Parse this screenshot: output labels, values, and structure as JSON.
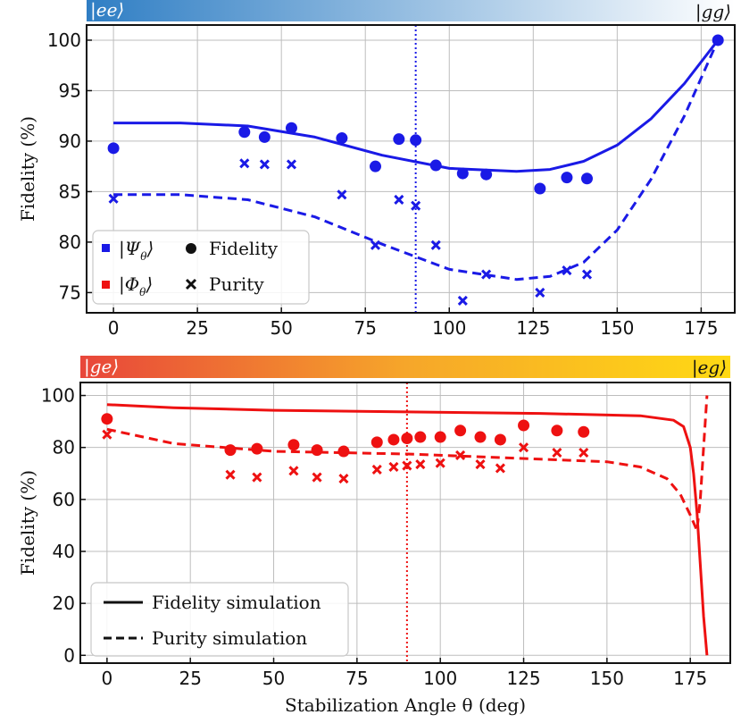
{
  "chart_data": [
    {
      "type": "scatter",
      "title": "",
      "xlabel": "",
      "ylabel": "Fidelity (%)",
      "xlim": [
        -8,
        185
      ],
      "ylim": [
        73,
        101.5
      ],
      "xticks": [
        "0",
        "25",
        "50",
        "75",
        "100",
        "125",
        "150",
        "175"
      ],
      "yticks": [
        "75",
        "80",
        "85",
        "90",
        "95",
        "100"
      ],
      "grid": true,
      "vline_x": 90,
      "gradient_colors": [
        "#2f7ec4",
        "#ffffff"
      ],
      "gradient_left_label": "|ee⟩",
      "gradient_right_label": "|gg⟩",
      "series_color": "#1a1ae6",
      "series": [
        {
          "name": "Fidelity",
          "marker": "circle",
          "x": [
            0,
            39,
            45,
            53,
            68,
            78,
            85,
            90,
            96,
            104,
            111,
            127,
            135,
            141,
            180
          ],
          "y": [
            89.3,
            90.9,
            90.4,
            91.3,
            90.3,
            87.5,
            90.2,
            90.1,
            87.6,
            86.8,
            86.7,
            85.3,
            86.4,
            86.3,
            100
          ]
        },
        {
          "name": "Purity",
          "marker": "cross",
          "x": [
            0,
            39,
            45,
            53,
            68,
            78,
            85,
            90,
            96,
            104,
            111,
            127,
            135,
            141
          ],
          "y": [
            84.3,
            87.8,
            87.7,
            87.7,
            84.7,
            79.7,
            84.2,
            83.6,
            79.7,
            74.2,
            76.8,
            75.0,
            77.2,
            76.8
          ]
        },
        {
          "name": "Fidelity simulation",
          "style": "solid",
          "x": [
            0,
            20,
            40,
            60,
            80,
            100,
            120,
            130,
            140,
            150,
            160,
            170,
            180
          ],
          "y": [
            91.8,
            91.8,
            91.5,
            90.4,
            88.6,
            87.3,
            87.0,
            87.2,
            88.0,
            89.6,
            92.2,
            95.7,
            100
          ]
        },
        {
          "name": "Purity simulation",
          "style": "dashed",
          "x": [
            0,
            20,
            40,
            60,
            80,
            100,
            120,
            130,
            140,
            150,
            160,
            170,
            180
          ],
          "y": [
            84.7,
            84.7,
            84.2,
            82.5,
            79.8,
            77.3,
            76.3,
            76.6,
            78.0,
            81.2,
            86.2,
            92.5,
            100
          ]
        }
      ],
      "legend": {
        "placement": "bottom-left",
        "entries": [
          {
            "ket": "|Ψ",
            "sub": "θ",
            "close": "⟩",
            "color": "#1a1ae6"
          },
          {
            "ket": "|Φ",
            "sub": "θ",
            "close": "⟩",
            "color": "#ee1111"
          }
        ],
        "markers": [
          "Fidelity",
          "Purity"
        ]
      }
    },
    {
      "type": "scatter",
      "title": "",
      "xlabel": "Stabilization Angle θ (deg)",
      "ylabel": "Fidelity (%)",
      "xlim": [
        -8,
        187
      ],
      "ylim": [
        -3,
        105
      ],
      "xticks": [
        "0",
        "25",
        "50",
        "75",
        "100",
        "125",
        "150",
        "175"
      ],
      "yticks": [
        "0",
        "20",
        "40",
        "60",
        "80",
        "100"
      ],
      "grid": true,
      "vline_x": 90,
      "gradient_colors": [
        "#e8463a",
        "#f6a62a",
        "#ffd914"
      ],
      "gradient_left_label": "|ge⟩",
      "gradient_right_label": "|eg⟩",
      "series_color": "#ee1111",
      "series": [
        {
          "name": "Fidelity",
          "marker": "circle",
          "x": [
            0,
            37,
            45,
            56,
            63,
            71,
            81,
            86,
            90,
            94,
            100,
            106,
            112,
            118,
            125,
            135,
            143
          ],
          "y": [
            91,
            79,
            79.5,
            81,
            79,
            78.5,
            82,
            83,
            83.5,
            84,
            84,
            86.5,
            84,
            83,
            88.5,
            86.5,
            86
          ]
        },
        {
          "name": "Purity",
          "marker": "cross",
          "x": [
            0,
            37,
            45,
            56,
            63,
            71,
            81,
            86,
            90,
            94,
            100,
            106,
            112,
            118,
            125,
            135,
            143
          ],
          "y": [
            85,
            69.5,
            68.5,
            71,
            68.5,
            68,
            71.5,
            72.5,
            73,
            73.5,
            74,
            77,
            73.5,
            72,
            80,
            78,
            78
          ]
        },
        {
          "name": "Fidelity simulation",
          "style": "solid",
          "x": [
            0,
            20,
            50,
            90,
            130,
            160,
            170,
            173,
            175,
            176,
            177,
            178,
            179,
            180
          ],
          "y": [
            96.5,
            95.3,
            94.3,
            93.7,
            93.1,
            92.2,
            90.5,
            88,
            80,
            70,
            55,
            35,
            15,
            0
          ]
        },
        {
          "name": "Purity simulation",
          "style": "dashed",
          "x": [
            0,
            20,
            50,
            90,
            130,
            150,
            160,
            168,
            172,
            175,
            177,
            178,
            179,
            180
          ],
          "y": [
            87,
            81.5,
            78.5,
            77.5,
            75.5,
            74.5,
            72.5,
            68,
            62,
            54,
            48,
            60,
            80,
            100
          ]
        }
      ],
      "legend": {
        "placement": "bottom-left",
        "entries": [
          {
            "label": "Fidelity simulation",
            "style": "solid"
          },
          {
            "label": "Purity simulation",
            "style": "dashed"
          }
        ]
      }
    }
  ]
}
